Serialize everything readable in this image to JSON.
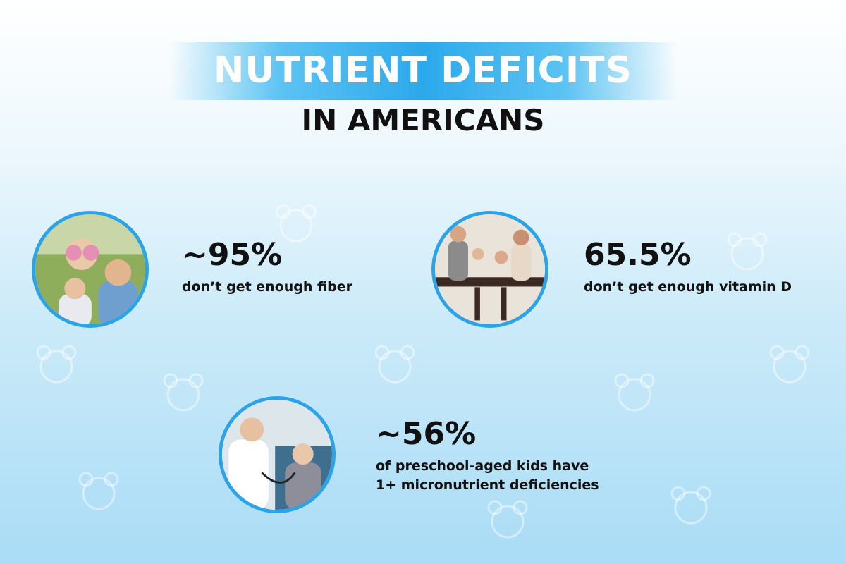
{
  "header": {
    "title": "NUTRIENT DEFICITS",
    "subtitle": "IN AMERICANS"
  },
  "stats": [
    {
      "value": "~95%",
      "lines": [
        "don’t get enough fiber"
      ]
    },
    {
      "value": "65.5%",
      "lines": [
        "don’t get enough vitamin D"
      ]
    },
    {
      "value": "~56%",
      "lines": [
        "of preschool-aged kids have",
        "1+ micronutrient deficiencies"
      ]
    }
  ]
}
